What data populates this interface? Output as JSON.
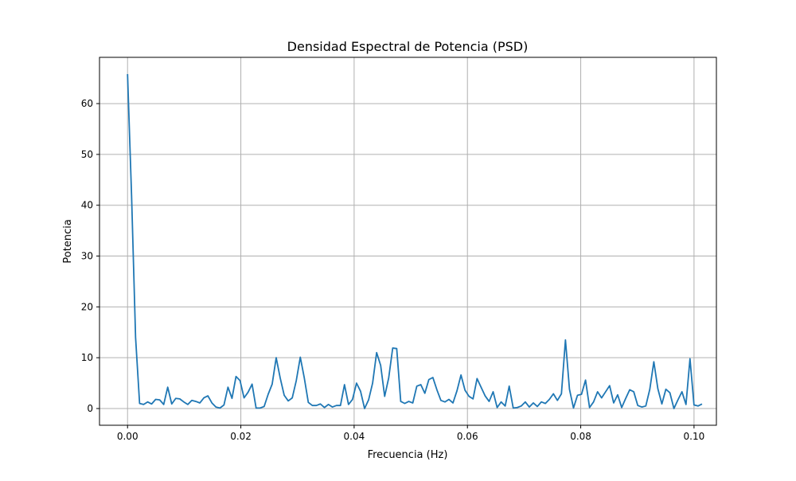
{
  "chart_data": {
    "type": "line",
    "title": "Densidad Espectral de Potencia (PSD)",
    "xlabel": "Frecuencia (Hz)",
    "ylabel": "Potencia",
    "xlim": [
      -0.00495,
      0.10395
    ],
    "ylim": [
      -3.29,
      69.1
    ],
    "xticks": [
      0.0,
      0.02,
      0.04,
      0.06,
      0.08,
      0.1
    ],
    "xtick_labels": [
      "0.00",
      "0.02",
      "0.04",
      "0.06",
      "0.08",
      "0.10"
    ],
    "yticks": [
      0,
      10,
      20,
      30,
      40,
      50,
      60
    ],
    "ytick_labels": [
      "0",
      "10",
      "20",
      "30",
      "40",
      "50",
      "60"
    ],
    "grid": true,
    "color": "#1f77b4",
    "series": [
      {
        "x_start": 0.0,
        "x_step": 0.0007092,
        "values": [
          65.8,
          42.0,
          14.0,
          1.0,
          0.8,
          1.3,
          0.9,
          1.8,
          1.7,
          0.8,
          4.2,
          0.9,
          2.0,
          1.9,
          1.3,
          0.8,
          1.6,
          1.4,
          1.1,
          2.1,
          2.5,
          1.1,
          0.3,
          0.1,
          0.7,
          4.2,
          2.0,
          6.3,
          5.5,
          2.1,
          3.2,
          4.8,
          0.1,
          0.1,
          0.4,
          2.8,
          4.8,
          10.0,
          6.0,
          2.6,
          1.5,
          2.1,
          5.5,
          10.1,
          6.0,
          1.2,
          0.6,
          0.6,
          0.9,
          0.2,
          0.8,
          0.3,
          0.6,
          0.6,
          4.7,
          0.8,
          1.8,
          5.0,
          3.4,
          0.0,
          1.7,
          5.0,
          11.0,
          8.5,
          2.4,
          6.0,
          11.9,
          11.8,
          1.4,
          1.0,
          1.4,
          1.1,
          4.4,
          4.7,
          3.0,
          5.7,
          6.1,
          3.7,
          1.6,
          1.3,
          1.8,
          1.1,
          3.5,
          6.6,
          3.6,
          2.4,
          1.9,
          5.9,
          4.2,
          2.5,
          1.4,
          3.3,
          0.2,
          1.3,
          0.5,
          4.4,
          0.1,
          0.2,
          0.5,
          1.3,
          0.3,
          1.1,
          0.4,
          1.3,
          1.0,
          1.8,
          2.9,
          1.6,
          2.9,
          13.5,
          3.8,
          0.1,
          2.6,
          2.8,
          5.6,
          0.2,
          1.3,
          3.3,
          2.1,
          3.3,
          4.5,
          1.1,
          2.7,
          0.2,
          2.0,
          3.7,
          3.3,
          0.6,
          0.3,
          0.5,
          3.8,
          9.2,
          3.9,
          0.9,
          3.8,
          3.1,
          0.0,
          1.7,
          3.3,
          0.8,
          9.8,
          0.7,
          0.5,
          0.9
        ]
      }
    ]
  }
}
